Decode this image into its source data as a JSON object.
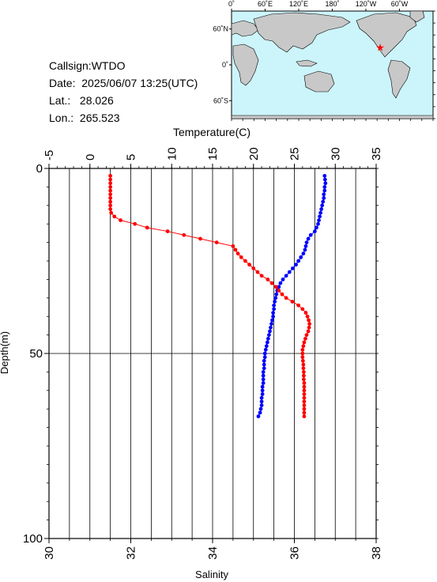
{
  "header": {
    "callsign": "Callsign:WTDO",
    "date_label": "Date:",
    "date_value": "2025/06/07 13:25(UTC)",
    "lat_label": "Lat.:",
    "lat_value": "28.026",
    "lon_label": "Lon.:",
    "lon_value": "265.523"
  },
  "map": {
    "lon_ticks": [
      "0˚",
      "60˚E",
      "120˚E",
      "180˚",
      "120˚W",
      "60˚W"
    ],
    "lat_ticks": [
      "60˚N",
      "0˚",
      "60˚S"
    ],
    "ocean_color": "#ccf5fb",
    "land_color": "#c8c8c8",
    "marker_color": "#ff0000",
    "station": {
      "lat": 28.026,
      "lon": 265.523
    }
  },
  "chart_data": {
    "type": "line",
    "top_axis": {
      "label": "Temperature(C)",
      "range": [
        -5,
        35
      ],
      "ticks": [
        "-5",
        "0",
        "5",
        "10",
        "15",
        "20",
        "25",
        "30",
        "35"
      ]
    },
    "bottom_axis": {
      "label": "Salinity",
      "range": [
        30,
        38
      ],
      "ticks": [
        "30",
        "32",
        "34",
        "36",
        "38"
      ]
    },
    "y_axis": {
      "label": "Depth(m)",
      "range": [
        0,
        100
      ],
      "inverted": true,
      "ticks": [
        "0",
        "50",
        "100"
      ]
    },
    "grid": true,
    "series": [
      {
        "axis": "temperature",
        "color": "#0000ff",
        "points": [
          [
            28.7,
            2
          ],
          [
            28.75,
            3
          ],
          [
            28.8,
            4
          ],
          [
            28.7,
            5
          ],
          [
            28.7,
            6
          ],
          [
            28.6,
            7
          ],
          [
            28.6,
            8
          ],
          [
            28.5,
            9
          ],
          [
            28.4,
            10
          ],
          [
            28.3,
            11
          ],
          [
            28.2,
            12
          ],
          [
            28.1,
            13
          ],
          [
            28.0,
            14
          ],
          [
            27.9,
            15
          ],
          [
            27.7,
            16
          ],
          [
            27.5,
            17
          ],
          [
            27.0,
            18
          ],
          [
            26.7,
            19
          ],
          [
            26.5,
            20
          ],
          [
            26.4,
            21
          ],
          [
            26.3,
            22
          ],
          [
            26.1,
            23
          ],
          [
            25.8,
            24
          ],
          [
            25.5,
            25
          ],
          [
            25.2,
            26
          ],
          [
            24.8,
            27
          ],
          [
            24.4,
            28
          ],
          [
            24.0,
            29
          ],
          [
            23.6,
            30
          ],
          [
            23.3,
            31
          ],
          [
            23.1,
            32
          ],
          [
            22.9,
            33
          ],
          [
            22.8,
            34
          ],
          [
            22.7,
            35
          ],
          [
            22.6,
            36
          ],
          [
            22.5,
            37
          ],
          [
            22.5,
            38
          ],
          [
            22.4,
            39
          ],
          [
            22.4,
            40
          ],
          [
            22.3,
            41
          ],
          [
            22.2,
            42
          ],
          [
            22.1,
            43
          ],
          [
            22.0,
            44
          ],
          [
            21.9,
            45
          ],
          [
            21.8,
            46
          ],
          [
            21.7,
            47
          ],
          [
            21.6,
            48
          ],
          [
            21.5,
            49
          ],
          [
            21.4,
            50
          ],
          [
            21.4,
            51
          ],
          [
            21.3,
            52
          ],
          [
            21.3,
            53
          ],
          [
            21.3,
            54
          ],
          [
            21.2,
            55
          ],
          [
            21.2,
            56
          ],
          [
            21.2,
            57
          ],
          [
            21.2,
            58
          ],
          [
            21.1,
            59
          ],
          [
            21.1,
            60
          ],
          [
            21.1,
            61
          ],
          [
            21.0,
            62
          ],
          [
            21.0,
            63
          ],
          [
            21.0,
            64
          ],
          [
            20.9,
            65
          ],
          [
            20.8,
            66
          ],
          [
            20.6,
            67
          ]
        ]
      },
      {
        "axis": "salinity",
        "color": "#ff0000",
        "points": [
          [
            31.5,
            2
          ],
          [
            31.5,
            3
          ],
          [
            31.5,
            4
          ],
          [
            31.5,
            5
          ],
          [
            31.5,
            6
          ],
          [
            31.5,
            7
          ],
          [
            31.5,
            8
          ],
          [
            31.5,
            9
          ],
          [
            31.5,
            10
          ],
          [
            31.5,
            11
          ],
          [
            31.52,
            12
          ],
          [
            31.6,
            13
          ],
          [
            31.75,
            14
          ],
          [
            32.1,
            15
          ],
          [
            32.4,
            16
          ],
          [
            32.9,
            17
          ],
          [
            33.3,
            18
          ],
          [
            33.7,
            19
          ],
          [
            34.1,
            20
          ],
          [
            34.5,
            21
          ],
          [
            34.56,
            22
          ],
          [
            34.62,
            23
          ],
          [
            34.7,
            24
          ],
          [
            34.8,
            25
          ],
          [
            34.9,
            26
          ],
          [
            35.0,
            27
          ],
          [
            35.1,
            28
          ],
          [
            35.2,
            29
          ],
          [
            35.35,
            30
          ],
          [
            35.45,
            31
          ],
          [
            35.55,
            32
          ],
          [
            35.62,
            33
          ],
          [
            35.7,
            34
          ],
          [
            35.8,
            35
          ],
          [
            35.95,
            36
          ],
          [
            36.1,
            37
          ],
          [
            36.2,
            38
          ],
          [
            36.28,
            39
          ],
          [
            36.32,
            40
          ],
          [
            36.35,
            41
          ],
          [
            36.37,
            42
          ],
          [
            36.36,
            43
          ],
          [
            36.34,
            44
          ],
          [
            36.3,
            45
          ],
          [
            36.27,
            46
          ],
          [
            36.24,
            47
          ],
          [
            36.22,
            48
          ],
          [
            36.2,
            49
          ],
          [
            36.2,
            50
          ],
          [
            36.2,
            51
          ],
          [
            36.21,
            52
          ],
          [
            36.22,
            53
          ],
          [
            36.22,
            54
          ],
          [
            36.23,
            55
          ],
          [
            36.23,
            56
          ],
          [
            36.23,
            57
          ],
          [
            36.24,
            58
          ],
          [
            36.24,
            59
          ],
          [
            36.24,
            60
          ],
          [
            36.24,
            61
          ],
          [
            36.24,
            62
          ],
          [
            36.24,
            63
          ],
          [
            36.24,
            64
          ],
          [
            36.24,
            65
          ],
          [
            36.24,
            66
          ],
          [
            36.24,
            67
          ]
        ]
      }
    ]
  }
}
